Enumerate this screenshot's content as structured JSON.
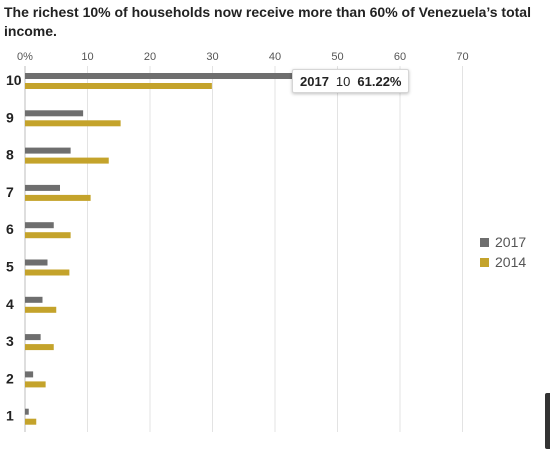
{
  "chart_data": {
    "type": "bar",
    "orientation": "horizontal",
    "title": "The richest 10% of households now receive more than 60% of Venezuela’s total income.",
    "x_ticks": [
      "0%",
      "10",
      "20",
      "30",
      "40",
      "50",
      "60",
      "70"
    ],
    "xlim": [
      0,
      70
    ],
    "categories": [
      "10",
      "9",
      "8",
      "7",
      "6",
      "5",
      "4",
      "3",
      "2",
      "1"
    ],
    "series": [
      {
        "name": "2017",
        "color": "#6e6e6e",
        "values": [
          61.22,
          9.3,
          7.3,
          5.6,
          4.6,
          3.6,
          2.8,
          2.5,
          1.3,
          0.6
        ]
      },
      {
        "name": "2014",
        "color": "#c4a32b",
        "values": [
          29.9,
          15.3,
          13.4,
          10.5,
          7.3,
          7.1,
          5.0,
          4.6,
          3.3,
          1.8
        ]
      }
    ],
    "grid": true,
    "legend_position": "right",
    "tooltip": {
      "series": "2017",
      "category": "10",
      "value": "61.22%"
    }
  }
}
